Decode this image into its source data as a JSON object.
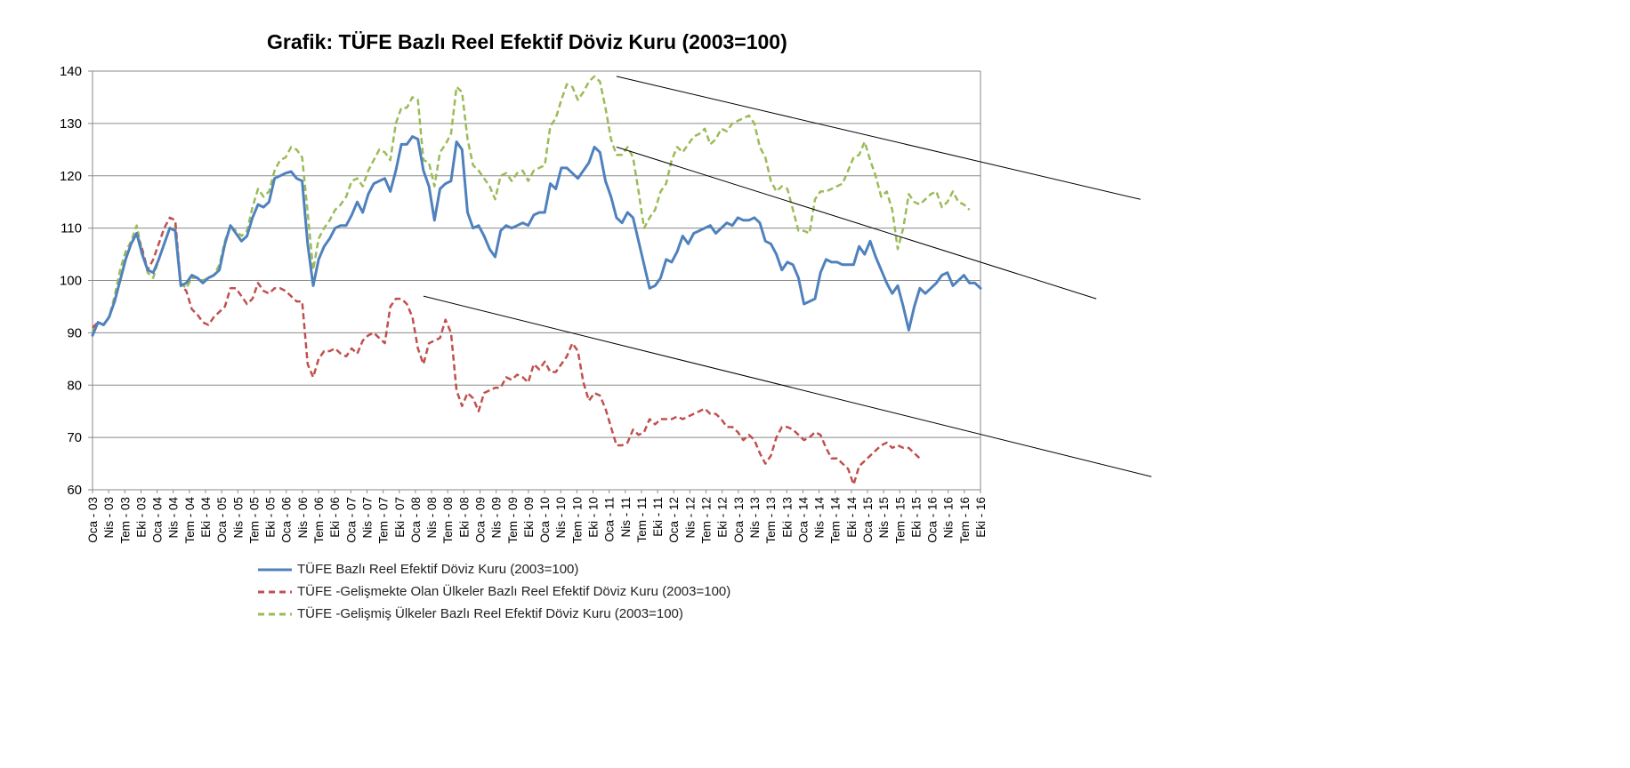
{
  "chart_data": {
    "type": "line",
    "title": "Grafik: TÜFE  Bazlı Reel Efektif Döviz Kuru (2003=100)",
    "xlabel": "",
    "ylabel": "",
    "ylim": [
      60,
      140
    ],
    "yticks": [
      60,
      70,
      80,
      90,
      100,
      110,
      120,
      130,
      140
    ],
    "grid": true,
    "legend_position": "bottom",
    "x_tick_labels": [
      "Oca - 03",
      "Nis - 03",
      "Tem - 03",
      "Eki - 03",
      "Oca - 04",
      "Nis - 04",
      "Tem - 04",
      "Eki - 04",
      "Oca - 05",
      "Nis - 05",
      "Tem - 05",
      "Eki - 05",
      "Oca - 06",
      "Nis - 06",
      "Tem - 06",
      "Eki - 06",
      "Oca - 07",
      "Nis - 07",
      "Tem - 07",
      "Eki - 07",
      "Oca - 08",
      "Nis - 08",
      "Tem - 08",
      "Eki - 08",
      "Oca - 09",
      "Nis - 09",
      "Tem - 09",
      "Eki - 09",
      "Oca - 10",
      "Nis - 10",
      "Tem - 10",
      "Eki - 10",
      "Oca - 11",
      "Nis - 11",
      "Tem - 11",
      "Eki - 11",
      "Oca - 12",
      "Nis - 12",
      "Tem - 12",
      "Eki - 12",
      "Oca - 13",
      "Nis - 13",
      "Tem - 13",
      "Eki - 13",
      "Oca - 14",
      "Nis - 14",
      "Tem - 14",
      "Eki - 14",
      "Oca - 15",
      "Nis - 15",
      "Tem - 15",
      "Eki - 15",
      "Oca - 16",
      "Nis - 16",
      "Tem - 16",
      "Eki - 16"
    ],
    "series": [
      {
        "name": "TÜFE  Bazlı Reel Efektif Döviz Kuru (2003=100)",
        "color": "#4f81bd",
        "dash": "solid",
        "values": [
          89.5,
          92,
          91.5,
          93,
          96,
          100,
          104,
          107,
          109,
          105,
          102,
          101.5,
          104,
          107,
          110,
          109.5,
          99,
          99.5,
          101,
          100.5,
          99.5,
          100.5,
          101,
          102,
          107,
          110.5,
          109,
          107.5,
          108.5,
          112,
          114.5,
          114,
          115,
          119.5,
          120,
          120.5,
          120.8,
          119.5,
          119,
          107,
          99,
          104,
          106.5,
          108,
          110,
          110.5,
          110.5,
          112.5,
          115,
          113,
          116.5,
          118.5,
          119,
          119.5,
          117,
          121,
          126,
          126,
          127.5,
          127,
          121,
          118,
          111.5,
          117.5,
          118.5,
          119,
          126.5,
          125,
          113,
          110,
          110.5,
          108.5,
          106,
          104.5,
          109.5,
          110.5,
          110,
          110.5,
          111,
          110.5,
          112.5,
          113,
          113,
          118.5,
          117.5,
          121.5,
          121.5,
          120.5,
          119.5,
          121,
          122.5,
          125.5,
          124.5,
          119,
          116,
          112,
          111,
          113,
          112,
          107.5,
          103,
          98.5,
          99,
          100.5,
          104,
          103.5,
          105.5,
          108.5,
          107,
          109,
          109.5,
          110,
          110.5,
          109,
          110,
          111,
          110.5,
          112,
          111.5,
          111.5,
          112,
          111,
          107.5,
          107,
          105,
          102,
          103.5,
          103,
          100.5,
          95.5,
          96,
          96.5,
          101.5,
          104,
          103.5,
          103.5,
          103,
          103,
          103,
          106.5,
          105,
          107.5,
          104.5,
          102,
          99.5,
          97.5,
          99,
          95,
          90.5,
          95,
          98.5,
          97.5,
          98.5,
          99.5,
          101,
          101.5,
          99,
          100,
          101,
          99.5,
          99.5,
          98.5
        ],
        "line_width": 3
      },
      {
        "name": "TÜFE -Gelişmekte Olan Ülkeler Bazlı Reel Efektif Döviz Kuru (2003=100)",
        "color": "#c0504d",
        "dash": "dashed",
        "values": [
          91,
          92,
          91.5,
          93,
          96,
          100,
          104,
          107,
          109,
          106,
          102,
          104,
          107,
          110,
          112,
          111.5,
          99,
          98,
          94.5,
          93.5,
          92,
          91.5,
          93,
          94,
          95,
          98.5,
          98.5,
          97,
          95.5,
          96.5,
          99.5,
          98,
          97.5,
          98.5,
          98.5,
          98,
          97,
          96,
          96,
          84,
          81.5,
          85,
          86.5,
          86.5,
          87,
          86,
          85.5,
          87,
          86,
          88.5,
          89.5,
          90,
          89,
          88,
          95,
          96.5,
          96.5,
          95.5,
          93,
          87,
          84,
          88,
          88.5,
          89,
          92.5,
          90,
          79,
          76,
          78.5,
          77.5,
          75,
          78.5,
          79,
          79.5,
          79.5,
          81.5,
          81,
          82,
          81.5,
          80.5,
          84,
          83,
          84.5,
          82.5,
          82.5,
          84,
          85.5,
          88,
          86.5,
          80.5,
          77,
          78.5,
          78,
          75.5,
          72,
          68.5,
          68.5,
          69,
          71.5,
          70.5,
          71,
          73.5,
          72.5,
          73.5,
          73.5,
          73.5,
          74,
          73.5,
          74,
          74.5,
          75,
          75.5,
          74.5,
          74.5,
          73.5,
          72,
          72,
          71,
          69.5,
          70.5,
          69.5,
          67,
          65,
          66.5,
          70,
          72,
          72,
          71.5,
          70.5,
          69.5,
          70,
          71,
          70.5,
          68,
          66,
          66,
          65,
          64,
          61,
          64.5,
          65.5,
          66.5,
          67.5,
          68.5,
          69,
          68,
          68.5,
          68,
          68,
          67,
          66
        ],
        "line_width": 2.5
      },
      {
        "name": "TÜFE -Gelişmiş Ülkeler Bazlı Reel Efektif Döviz Kuru (2003=100)",
        "color": "#9bbb59",
        "dash": "dashed",
        "values": [
          90.5,
          92,
          91.5,
          93,
          97,
          102,
          105.5,
          107.5,
          110.5,
          105.5,
          101.5,
          100.5,
          104,
          107,
          110,
          110.5,
          99.5,
          98.5,
          100.5,
          100.5,
          100,
          100.5,
          101,
          103,
          107.5,
          110.5,
          109.5,
          108.5,
          109.5,
          114,
          117.5,
          116,
          117,
          121,
          123,
          123.5,
          125.5,
          125,
          123.5,
          113,
          102,
          108,
          110,
          111.5,
          113.5,
          114.5,
          116,
          119,
          119.5,
          118,
          121,
          123,
          125,
          124.5,
          123,
          130,
          133,
          133,
          135,
          134.5,
          123,
          122.5,
          118,
          124.5,
          126,
          128,
          137,
          136,
          127,
          122,
          121,
          119.5,
          118,
          115.5,
          120,
          120.5,
          119,
          120.5,
          121,
          119,
          121,
          121.5,
          122,
          129.5,
          131,
          134.5,
          137.5,
          137,
          134.5,
          136,
          138,
          139,
          138,
          133,
          127,
          124,
          124,
          125.5,
          123.5,
          117,
          110,
          112,
          113.5,
          117,
          118.5,
          123,
          125.5,
          124.5,
          126,
          127.5,
          128,
          129,
          126,
          127,
          129,
          128.5,
          130,
          130.5,
          131,
          131.5,
          130,
          125.5,
          123.5,
          119,
          117,
          118,
          117.5,
          113.5,
          109.5,
          109.5,
          109,
          115.5,
          117,
          117,
          117.5,
          118,
          118.5,
          121,
          123.5,
          124,
          126.5,
          123,
          120,
          116,
          117,
          113.5,
          106,
          110,
          116.5,
          115,
          114.5,
          115.5,
          116.5,
          117,
          114,
          115,
          117,
          115,
          114.5,
          113.5
        ],
        "line_width": 2.5
      }
    ],
    "trend_lines": [
      {
        "from": {
          "x_index": 95,
          "y": 139
        },
        "to": {
          "x_index": 190,
          "y": 115.5
        }
      },
      {
        "from": {
          "x_index": 95,
          "y": 125.5
        },
        "to": {
          "x_index": 182,
          "y": 96.5
        }
      },
      {
        "from": {
          "x_index": 60,
          "y": 97
        },
        "to": {
          "x_index": 192,
          "y": 62.5
        }
      }
    ]
  }
}
